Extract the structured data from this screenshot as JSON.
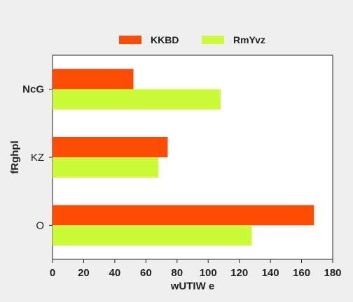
{
  "chart_data": {
    "type": "bar",
    "orientation": "horizontal",
    "categories": [
      "NcG",
      "KZ",
      "O"
    ],
    "series": [
      {
        "name": "KKBD",
        "color": "#ff4c05",
        "values": [
          52,
          74,
          168
        ]
      },
      {
        "name": "RmYvz",
        "color": "#cbfb37",
        "values": [
          108,
          68,
          128
        ]
      }
    ],
    "xlabel": "wUTIW e",
    "ylabel": "fRghpl",
    "xlim": [
      0,
      180
    ],
    "xticks": [
      "0",
      "20",
      "40",
      "60",
      "80",
      "100",
      "120",
      "140",
      "160",
      "180"
    ],
    "grid": false,
    "legend_position": "top-center"
  }
}
